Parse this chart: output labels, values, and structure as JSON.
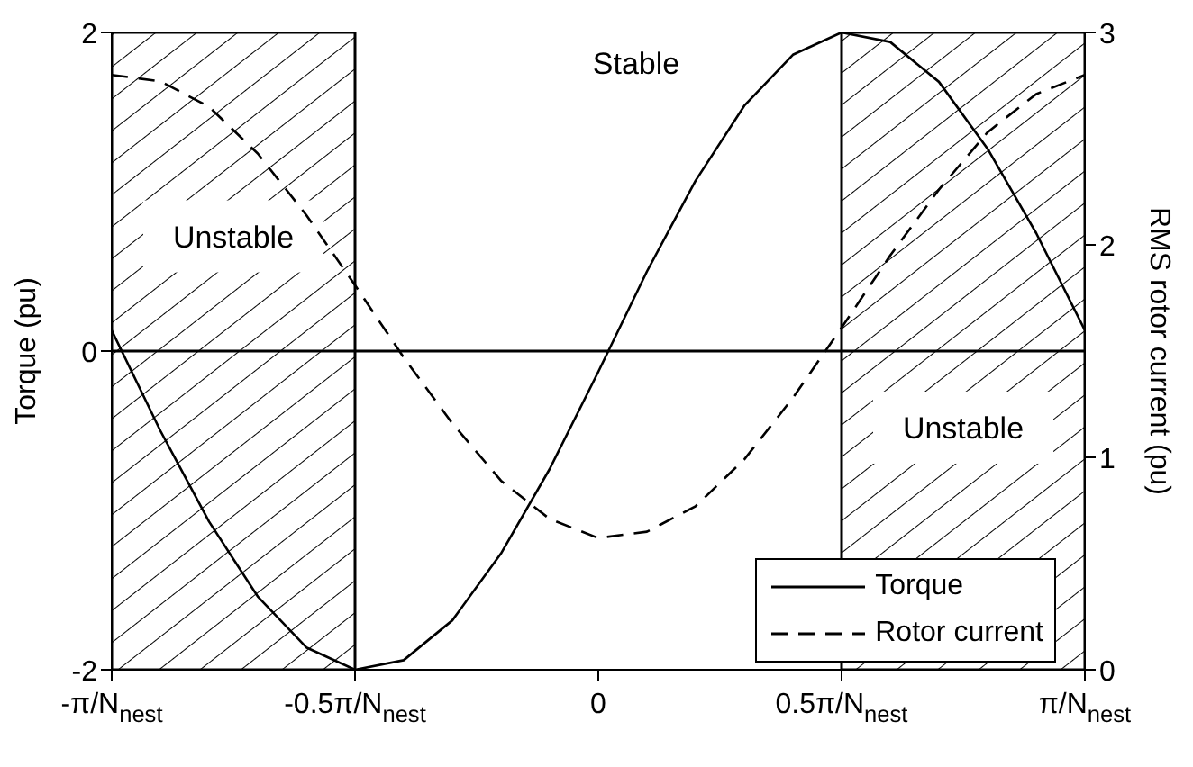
{
  "chart_data": {
    "type": "line",
    "ylabel": "Torque (pu)",
    "y2label": "RMS rotor current (pu)",
    "x": [
      -1,
      -0.9,
      -0.8,
      -0.7,
      -0.6,
      -0.5,
      -0.4,
      -0.3,
      -0.2,
      -0.1,
      0,
      0.1,
      0.2,
      0.3,
      0.4,
      0.5,
      0.6,
      0.7,
      0.8,
      0.9,
      1
    ],
    "series": [
      {
        "name": "Torque",
        "color": "#000000",
        "line_style": "solid",
        "values": [
          0.13,
          -0.5,
          -1.07,
          -1.54,
          -1.86,
          -2,
          -1.94,
          -1.69,
          -1.27,
          -0.74,
          -0.13,
          0.5,
          1.07,
          1.54,
          1.86,
          2,
          1.94,
          1.69,
          1.27,
          0.74,
          0.13
        ]
      },
      {
        "name": "Rotor current",
        "color": "#000000",
        "line_style": "dashed",
        "axis": "y2",
        "values": [
          2.8,
          2.77,
          2.65,
          2.43,
          2.14,
          1.81,
          1.47,
          1.16,
          0.89,
          0.71,
          0.62,
          0.65,
          0.77,
          0.99,
          1.28,
          1.61,
          1.95,
          2.26,
          2.53,
          2.71,
          2.8
        ]
      }
    ],
    "xlim": [
      -1,
      1
    ],
    "xticks": [
      {
        "value": -1,
        "label": "-π/N$_{nest}$"
      },
      {
        "value": -0.5,
        "label": "-0.5π/N$_{nest}$"
      },
      0,
      {
        "value": 0.5,
        "label": "0.5π/N$_{nest}$"
      },
      {
        "value": 1,
        "label": "π/N$_{nest}$"
      }
    ],
    "ylim": [
      -2,
      2
    ],
    "yticks": [
      -2,
      0,
      2
    ],
    "y2lim": [
      0,
      3
    ],
    "y2ticks": [
      0,
      1,
      2,
      3
    ],
    "ref_lines": [
      {
        "axis": "y",
        "value": 0,
        "color": "#000000"
      }
    ],
    "bands": [
      {
        "axis": "x",
        "from": -1,
        "to": -0.5,
        "label": "Unstable"
      },
      {
        "axis": "x",
        "from": 0.5,
        "to": 1,
        "label": "Unstable"
      }
    ],
    "annotations": [
      "Stable"
    ],
    "legend": "bottom right"
  }
}
